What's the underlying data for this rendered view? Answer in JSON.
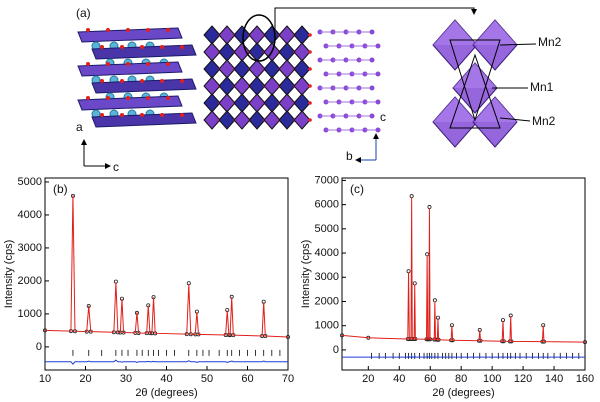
{
  "diagram": {
    "panel_label": "(a)",
    "left_axes": [
      "a",
      "c"
    ],
    "mid_axes": [
      "c",
      "b"
    ],
    "sites": [
      "Mn2",
      "Mn1",
      "Mn2"
    ]
  },
  "chart_data": [
    {
      "type": "line",
      "panel_label": "(b)",
      "x_label": "2θ (degrees)",
      "y_label": "Intensity (cps)",
      "xlim": [
        10,
        70
      ],
      "xticks": [
        10,
        20,
        30,
        40,
        50,
        60,
        70
      ],
      "ylim": [
        -700,
        5120
      ],
      "yticks": [
        0,
        1000,
        2000,
        3000,
        4000,
        5000
      ],
      "x": [
        10,
        16.4,
        16.9,
        17.4,
        20.3,
        20.8,
        21.3,
        27,
        27.5,
        28,
        28.6,
        29,
        29.4,
        32.3,
        32.7,
        33.1,
        35.1,
        35.5,
        35.9,
        36.4,
        36.8,
        37.2,
        45,
        45.5,
        46,
        47.1,
        47.5,
        47.9,
        54.6,
        55,
        55.4,
        55.7,
        56.1,
        56.5,
        63.6,
        64,
        64.4,
        70
      ],
      "series": [
        {
          "color": "#222222",
          "marker": true,
          "values": [
            500,
            480,
            4580,
            475,
            465,
            1240,
            463,
            445,
            1980,
            442,
            438,
            1460,
            436,
            425,
            1030,
            423,
            418,
            1260,
            416,
            414,
            1510,
            412,
            387,
            1930,
            385,
            381,
            1070,
            380,
            362,
            1120,
            361,
            359,
            1520,
            357,
            332,
            1370,
            330,
            300
          ]
        },
        {
          "color": "#e0201b",
          "marker": false,
          "values": [
            500,
            480,
            4600,
            475,
            465,
            1250,
            463,
            445,
            1950,
            442,
            438,
            1450,
            436,
            425,
            1050,
            423,
            418,
            1250,
            416,
            414,
            1500,
            412,
            387,
            1900,
            385,
            381,
            1050,
            380,
            362,
            1100,
            361,
            359,
            1500,
            357,
            332,
            1350,
            330,
            300
          ]
        },
        {
          "color": "#1f3fd6",
          "marker": false,
          "values": [
            -450,
            -450,
            -520,
            -450,
            -450,
            -430,
            -450,
            -450,
            -400,
            -450,
            -450,
            -460,
            -450,
            -450,
            -470,
            -450,
            -450,
            -440,
            -450,
            -450,
            -440,
            -450,
            -450,
            -420,
            -450,
            -450,
            -470,
            -450,
            -450,
            -470,
            -450,
            -450,
            -430,
            -450,
            -450,
            -430,
            -450,
            -450
          ]
        }
      ],
      "reflections": [
        16.9,
        20.8,
        24,
        27.5,
        29,
        30.5,
        32.7,
        34,
        35.5,
        36.8,
        38,
        40,
        42,
        45.5,
        47.5,
        49,
        50.5,
        53,
        55,
        56.1,
        58,
        60,
        62,
        64,
        66,
        68
      ]
    },
    {
      "type": "line",
      "panel_label": "(c)",
      "x_label": "2θ (degrees)",
      "y_label": "Intensity (cps)",
      "xlim": [
        3,
        160
      ],
      "xticks": [
        20,
        40,
        60,
        80,
        100,
        120,
        140,
        160
      ],
      "ylim": [
        -830,
        7100
      ],
      "yticks": [
        0,
        1000,
        2000,
        3000,
        4000,
        5000,
        6000,
        7000
      ],
      "x": [
        3,
        20,
        45.5,
        46,
        46.5,
        47.6,
        48,
        48.4,
        49.6,
        50,
        50.4,
        57.6,
        58,
        58.4,
        59.1,
        59.5,
        59.9,
        62.6,
        63,
        63.4,
        64.6,
        65,
        65.4,
        73.5,
        74,
        74.5,
        91.5,
        92,
        92.5,
        106.5,
        107,
        107.5,
        111.5,
        112,
        112.5,
        132.5,
        133,
        133.5,
        160
      ],
      "series": [
        {
          "color": "#222222",
          "marker": true,
          "values": [
            600,
            500,
            450,
            3250,
            450,
            450,
            6350,
            450,
            450,
            2750,
            450,
            440,
            3950,
            440,
            440,
            5900,
            440,
            430,
            2050,
            430,
            420,
            1330,
            420,
            400,
            1020,
            400,
            380,
            820,
            380,
            360,
            1230,
            360,
            350,
            1420,
            350,
            340,
            1020,
            340,
            320
          ]
        },
        {
          "color": "#e0201b",
          "marker": false,
          "values": [
            600,
            500,
            450,
            3200,
            450,
            450,
            6300,
            450,
            450,
            2700,
            450,
            440,
            3900,
            440,
            440,
            5850,
            440,
            430,
            2000,
            430,
            420,
            1300,
            420,
            400,
            1000,
            400,
            380,
            800,
            380,
            360,
            1200,
            360,
            350,
            1400,
            350,
            340,
            1000,
            340,
            320
          ]
        },
        {
          "color": "#1f3fd6",
          "marker": false,
          "values": [
            -300,
            -300,
            -300,
            -250,
            -300,
            -300,
            -250,
            -300,
            -300,
            -250,
            -300,
            -300,
            -250,
            -300,
            -300,
            -250,
            -300,
            -300,
            -250,
            -300,
            -300,
            -270,
            -300,
            -300,
            -280,
            -300,
            -300,
            -280,
            -300,
            -300,
            -270,
            -300,
            -300,
            -270,
            -300,
            -300,
            -280,
            -300,
            -300
          ]
        }
      ],
      "reflections": [
        22,
        27,
        31,
        36,
        40,
        44,
        46,
        48,
        50,
        53,
        56,
        58,
        59.5,
        61,
        63,
        65,
        68,
        70,
        72,
        74,
        77,
        80,
        84,
        88,
        92,
        96,
        100,
        104,
        107,
        110,
        112,
        115,
        118,
        122,
        126,
        130,
        133,
        136,
        140,
        144,
        148,
        152,
        156
      ]
    }
  ]
}
